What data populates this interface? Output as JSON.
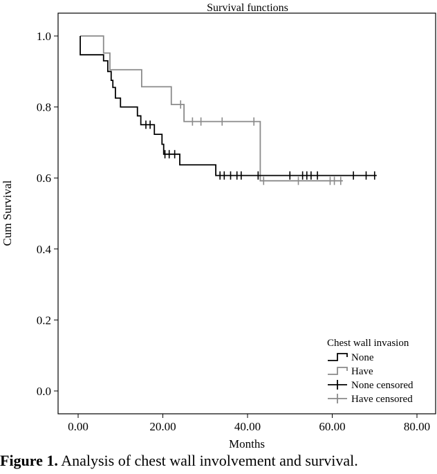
{
  "chart_data": {
    "type": "line",
    "subtype": "kaplan-meier-step",
    "title": "Survival functions",
    "xlabel": "Months",
    "ylabel": "Cum Survival",
    "xlim": [
      -5,
      83
    ],
    "ylim": [
      -0.06,
      1.08
    ],
    "xticks": [
      0,
      20,
      40,
      60,
      80
    ],
    "xtick_labels": [
      "0.00",
      "20.00",
      "40.00",
      "60.00",
      "80.00"
    ],
    "yticks": [
      0.0,
      0.2,
      0.4,
      0.6,
      0.8,
      1.0
    ],
    "ytick_labels": [
      "0.0",
      "0.2",
      "0.4",
      "0.6",
      "0.8",
      "1.0"
    ],
    "legend": {
      "title": "Chest wall invasion",
      "position": "bottom-right",
      "entries": [
        "None",
        "Have",
        "None censored",
        "Have censored"
      ]
    },
    "series": [
      {
        "name": "None",
        "color": "#000000",
        "steps": [
          [
            0.5,
            1.0
          ],
          [
            0.5,
            0.947
          ],
          [
            6,
            0.947
          ],
          [
            6,
            0.93
          ],
          [
            7,
            0.93
          ],
          [
            7,
            0.9
          ],
          [
            7.8,
            0.9
          ],
          [
            7.8,
            0.875
          ],
          [
            8.2,
            0.875
          ],
          [
            8.2,
            0.855
          ],
          [
            8.8,
            0.855
          ],
          [
            8.8,
            0.825
          ],
          [
            10,
            0.825
          ],
          [
            10,
            0.8
          ],
          [
            14,
            0.8
          ],
          [
            14,
            0.775
          ],
          [
            14.8,
            0.775
          ],
          [
            14.8,
            0.75
          ],
          [
            18,
            0.75
          ],
          [
            18,
            0.723
          ],
          [
            19.8,
            0.723
          ],
          [
            19.8,
            0.695
          ],
          [
            20.2,
            0.695
          ],
          [
            20.2,
            0.667
          ],
          [
            24,
            0.667
          ],
          [
            24,
            0.637
          ],
          [
            32.5,
            0.637
          ],
          [
            32.5,
            0.607
          ],
          [
            70.5,
            0.607
          ]
        ],
        "censored": [
          16.0,
          17.0,
          20.5,
          21.5,
          22.8,
          33.5,
          34.5,
          36.0,
          37.5,
          38.5,
          42.5,
          50.0,
          53.0,
          54.0,
          55.0,
          56.5,
          65.0,
          68.0,
          70.0
        ]
      },
      {
        "name": "Have",
        "color": "#8a8a8a",
        "steps": [
          [
            0.5,
            1.0
          ],
          [
            6,
            1.0
          ],
          [
            6,
            0.952
          ],
          [
            7.5,
            0.952
          ],
          [
            7.5,
            0.905
          ],
          [
            15,
            0.905
          ],
          [
            15,
            0.857
          ],
          [
            22,
            0.857
          ],
          [
            22,
            0.807
          ],
          [
            25,
            0.807
          ],
          [
            25,
            0.759
          ],
          [
            43,
            0.759
          ],
          [
            43,
            0.592
          ],
          [
            62.5,
            0.592
          ]
        ],
        "censored": [
          24.2,
          27.0,
          29.0,
          34.0,
          41.5,
          43.8,
          52.0,
          59.5,
          60.5,
          62.0
        ]
      }
    ]
  },
  "figure_caption": {
    "label": "Figure 1.",
    "text": " Analysis of chest wall involvement and survival."
  }
}
